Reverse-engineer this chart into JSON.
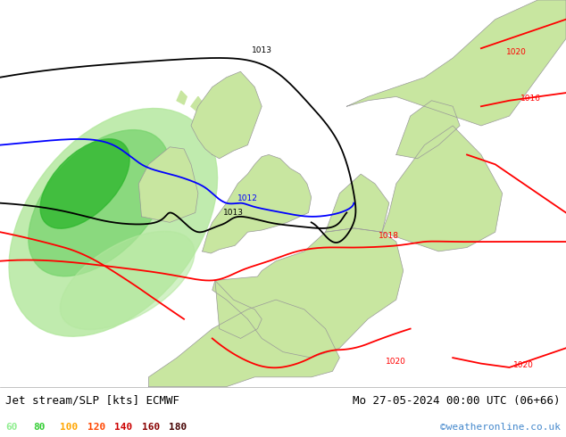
{
  "title_left": "Jet stream/SLP [kts] ECMWF",
  "title_right": "Mo 27-05-2024 00:00 UTC (06+66)",
  "credit": "©weatheronline.co.uk",
  "ocean_color": "#e8eef4",
  "land_color": "#c8e6a0",
  "land_border_color": "#999999",
  "legend_values": [
    "60",
    "80",
    "100",
    "120",
    "140",
    "160",
    "180"
  ],
  "legend_colors": [
    "#90ee90",
    "#32cd32",
    "#ffa500",
    "#ff4500",
    "#cc0000",
    "#880000",
    "#440000"
  ],
  "title_fontsize": 9,
  "credit_fontsize": 8,
  "bottom_bar_height": 0.115,
  "figsize": [
    6.34,
    4.9
  ],
  "dpi": 100,
  "xlim": [
    -20,
    20
  ],
  "ylim": [
    43,
    63
  ],
  "isobar_lw": 1.3
}
